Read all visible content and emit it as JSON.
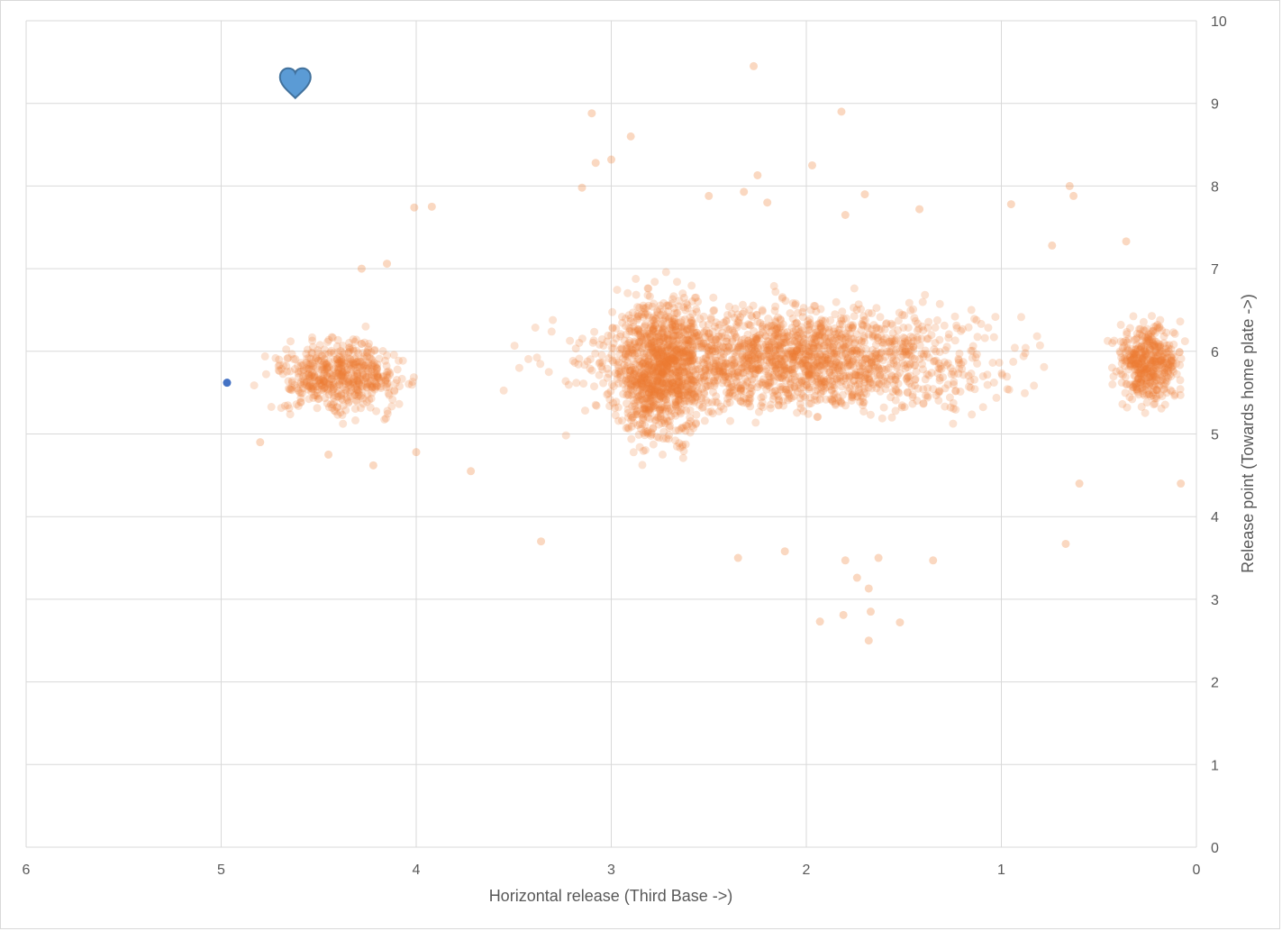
{
  "chart_data": {
    "type": "scatter",
    "title": "",
    "xlabel": "Horizontal release (Third Base ->)",
    "ylabel": "Release point (Towards home plate ->)",
    "xlim": [
      0,
      6
    ],
    "x_reversed": true,
    "ylim": [
      0,
      10
    ],
    "y_axis_position": "right",
    "x_ticks": [
      "0",
      "1",
      "2",
      "3",
      "4",
      "5",
      "6"
    ],
    "y_ticks": [
      "0",
      "1",
      "2",
      "3",
      "4",
      "5",
      "6",
      "7",
      "8",
      "9",
      "10"
    ],
    "grid": true,
    "legend": "none",
    "colors": {
      "dense_cloud": "#ed7d31",
      "highlight_point": "#4472c4",
      "heart_fill": "#5b9bd5",
      "heart_stroke": "#41719c",
      "grid": "#d9d9d9",
      "text": "#595959"
    },
    "highlight_point": {
      "x": 4.97,
      "y": 5.62
    },
    "heart_marker": {
      "x": 4.62,
      "y": 9.25
    },
    "dense_regions": [
      {
        "x_range": [
          0.5,
          3.7
        ],
        "y_range": [
          4.9,
          6.9
        ]
      },
      {
        "x_range": [
          2.4,
          3.1
        ],
        "y_range": [
          4.4,
          7.2
        ]
      },
      {
        "x_range": [
          0.0,
          0.5
        ],
        "y_range": [
          5.1,
          6.6
        ]
      },
      {
        "x_range": [
          3.9,
          4.9
        ],
        "y_range": [
          5.0,
          6.4
        ]
      }
    ],
    "outliers": [
      {
        "x": 2.27,
        "y": 9.45
      },
      {
        "x": 1.82,
        "y": 8.9
      },
      {
        "x": 3.1,
        "y": 8.88
      },
      {
        "x": 2.9,
        "y": 8.6
      },
      {
        "x": 3.0,
        "y": 8.32
      },
      {
        "x": 3.08,
        "y": 8.28
      },
      {
        "x": 1.97,
        "y": 8.25
      },
      {
        "x": 2.25,
        "y": 8.13
      },
      {
        "x": 0.65,
        "y": 8.0
      },
      {
        "x": 3.15,
        "y": 7.98
      },
      {
        "x": 2.32,
        "y": 7.93
      },
      {
        "x": 1.7,
        "y": 7.9
      },
      {
        "x": 0.63,
        "y": 7.88
      },
      {
        "x": 2.5,
        "y": 7.88
      },
      {
        "x": 4.01,
        "y": 7.74
      },
      {
        "x": 3.92,
        "y": 7.75
      },
      {
        "x": 0.95,
        "y": 7.78
      },
      {
        "x": 2.2,
        "y": 7.8
      },
      {
        "x": 1.8,
        "y": 7.65
      },
      {
        "x": 3.36,
        "y": 3.7
      },
      {
        "x": 0.67,
        "y": 3.67
      },
      {
        "x": 2.11,
        "y": 3.58
      },
      {
        "x": 1.35,
        "y": 3.47
      },
      {
        "x": 1.8,
        "y": 3.47
      },
      {
        "x": 1.63,
        "y": 3.5
      },
      {
        "x": 2.35,
        "y": 3.5
      },
      {
        "x": 1.74,
        "y": 3.26
      },
      {
        "x": 1.68,
        "y": 3.13
      },
      {
        "x": 1.67,
        "y": 2.85
      },
      {
        "x": 1.81,
        "y": 2.81
      },
      {
        "x": 1.93,
        "y": 2.73
      },
      {
        "x": 1.52,
        "y": 2.72
      },
      {
        "x": 1.68,
        "y": 2.5
      },
      {
        "x": 4.8,
        "y": 4.9
      },
      {
        "x": 4.22,
        "y": 4.62
      },
      {
        "x": 4.45,
        "y": 4.75
      },
      {
        "x": 4.0,
        "y": 4.78
      },
      {
        "x": 3.72,
        "y": 4.55
      },
      {
        "x": 4.28,
        "y": 7.0
      },
      {
        "x": 4.15,
        "y": 7.06
      },
      {
        "x": 0.08,
        "y": 4.4
      },
      {
        "x": 0.6,
        "y": 4.4
      },
      {
        "x": 1.42,
        "y": 7.72
      },
      {
        "x": 0.36,
        "y": 7.33
      },
      {
        "x": 0.74,
        "y": 7.28
      }
    ]
  }
}
